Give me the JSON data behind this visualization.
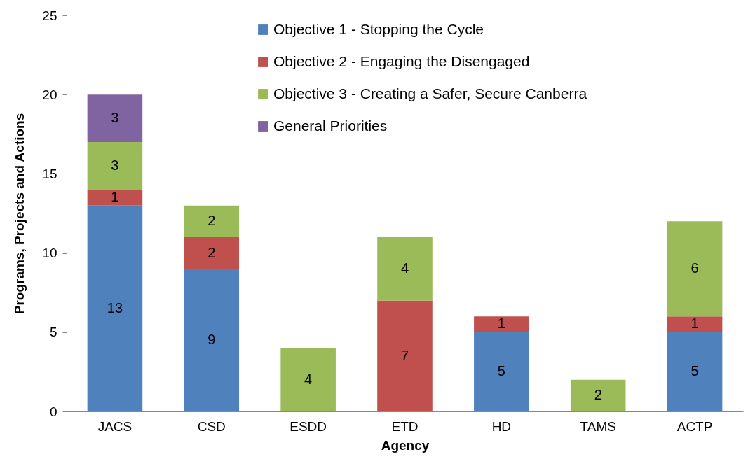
{
  "chart_data": {
    "type": "bar",
    "xlabel": "Agency",
    "ylabel": "Programs, Projects and Actions",
    "categories": [
      "JACS",
      "CSD",
      "ESDD",
      "ETD",
      "HD",
      "TAMS",
      "ACTP"
    ],
    "series": [
      {
        "name": "Objective 1 - Stopping the Cycle",
        "color": "#4f81bd",
        "values": [
          13,
          9,
          null,
          null,
          5,
          null,
          5
        ]
      },
      {
        "name": "Objective 2 - Engaging the Disengaged",
        "color": "#c0504d",
        "values": [
          1,
          2,
          null,
          7,
          1,
          null,
          1
        ]
      },
      {
        "name": "Objective 3 - Creating a Safer, Secure Canberra",
        "color": "#9bbb59",
        "values": [
          3,
          2,
          4,
          4,
          null,
          2,
          6
        ]
      },
      {
        "name": "General Priorities",
        "color": "#8064a2",
        "values": [
          3,
          null,
          null,
          null,
          null,
          null,
          null
        ]
      }
    ],
    "stacked": true,
    "ylim": [
      0,
      25
    ],
    "yticks": [
      0,
      5,
      10,
      15,
      20,
      25
    ],
    "grid": false,
    "legend": "top",
    "data_labels": true
  }
}
